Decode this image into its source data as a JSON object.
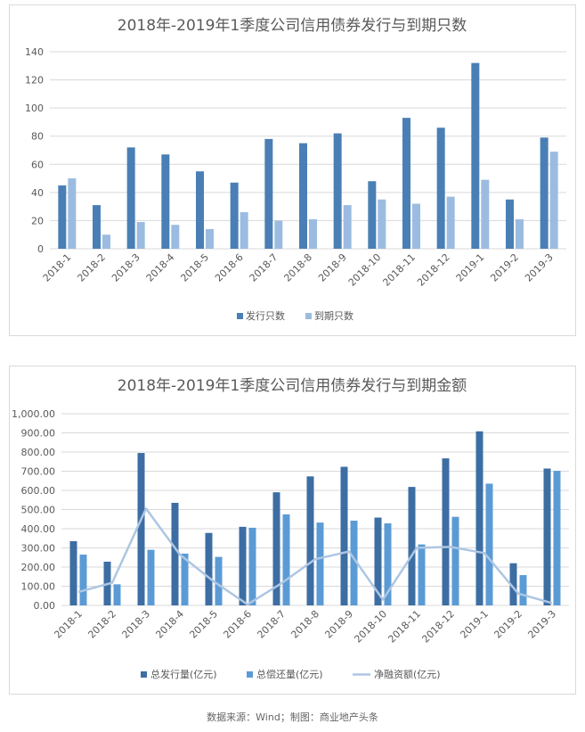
{
  "source_note": "数据来源：Wind；制图：商业地产头条",
  "colors": {
    "issue_count": "#4a7fb5",
    "mature_count": "#9bbce0",
    "issue_amount": "#3d6ea3",
    "repay_amount": "#5b9bd5",
    "net_financing": "#adc6e3",
    "grid": "#d9d9d9",
    "text": "#595959"
  },
  "chart_data": [
    {
      "type": "bar",
      "title": "2018年-2019年1季度公司信用债券发行与到期只数",
      "categories": [
        "2018-1",
        "2018-2",
        "2018-3",
        "2018-4",
        "2018-5",
        "2018-6",
        "2018-7",
        "2018-8",
        "2018-9",
        "2018-10",
        "2018-11",
        "2018-12",
        "2019-1",
        "2019-2",
        "2019-3"
      ],
      "series": [
        {
          "name": "发行只数",
          "values": [
            45,
            31,
            72,
            67,
            55,
            47,
            78,
            75,
            82,
            48,
            93,
            86,
            132,
            35,
            79
          ]
        },
        {
          "name": "到期只数",
          "values": [
            50,
            10,
            19,
            17,
            14,
            26,
            20,
            21,
            31,
            35,
            32,
            37,
            49,
            21,
            69
          ]
        }
      ],
      "ylim": [
        0,
        140
      ],
      "yticks": [
        0,
        20,
        40,
        60,
        80,
        100,
        120,
        140
      ],
      "ytick_labels": [
        "0",
        "20",
        "40",
        "60",
        "80",
        "100",
        "120",
        "140"
      ],
      "grid": true,
      "legend": "bottom"
    },
    {
      "type": "bar",
      "title": "2018年-2019年1季度公司信用债券发行与到期金额",
      "categories": [
        "2018-1",
        "2018-2",
        "2018-3",
        "2018-4",
        "2018-5",
        "2018-6",
        "2018-7",
        "2018-8",
        "2018-9",
        "2018-10",
        "2018-11",
        "2018-12",
        "2019-1",
        "2019-2",
        "2019-3"
      ],
      "series": [
        {
          "name": "总发行量(亿元)",
          "type": "bar",
          "values": [
            335,
            228,
            795,
            535,
            378,
            410,
            590,
            673,
            723,
            458,
            618,
            767,
            908,
            220,
            714
          ]
        },
        {
          "name": "总偿还量(亿元)",
          "type": "bar",
          "values": [
            265,
            110,
            290,
            270,
            253,
            405,
            475,
            432,
            442,
            428,
            318,
            462,
            635,
            158,
            702
          ]
        },
        {
          "name": "净融资额(亿元)",
          "type": "line",
          "values": [
            70,
            118,
            505,
            265,
            125,
            5,
            115,
            241,
            281,
            30,
            300,
            305,
            273,
            62,
            12
          ]
        }
      ],
      "ylim": [
        0,
        1000
      ],
      "yticks": [
        0,
        100,
        200,
        300,
        400,
        500,
        600,
        700,
        800,
        900,
        1000
      ],
      "ytick_labels": [
        "0.00",
        "100.00",
        "200.00",
        "300.00",
        "400.00",
        "500.00",
        "600.00",
        "700.00",
        "800.00",
        "900.00",
        "1,000.00"
      ],
      "grid": true,
      "legend": "bottom"
    }
  ]
}
